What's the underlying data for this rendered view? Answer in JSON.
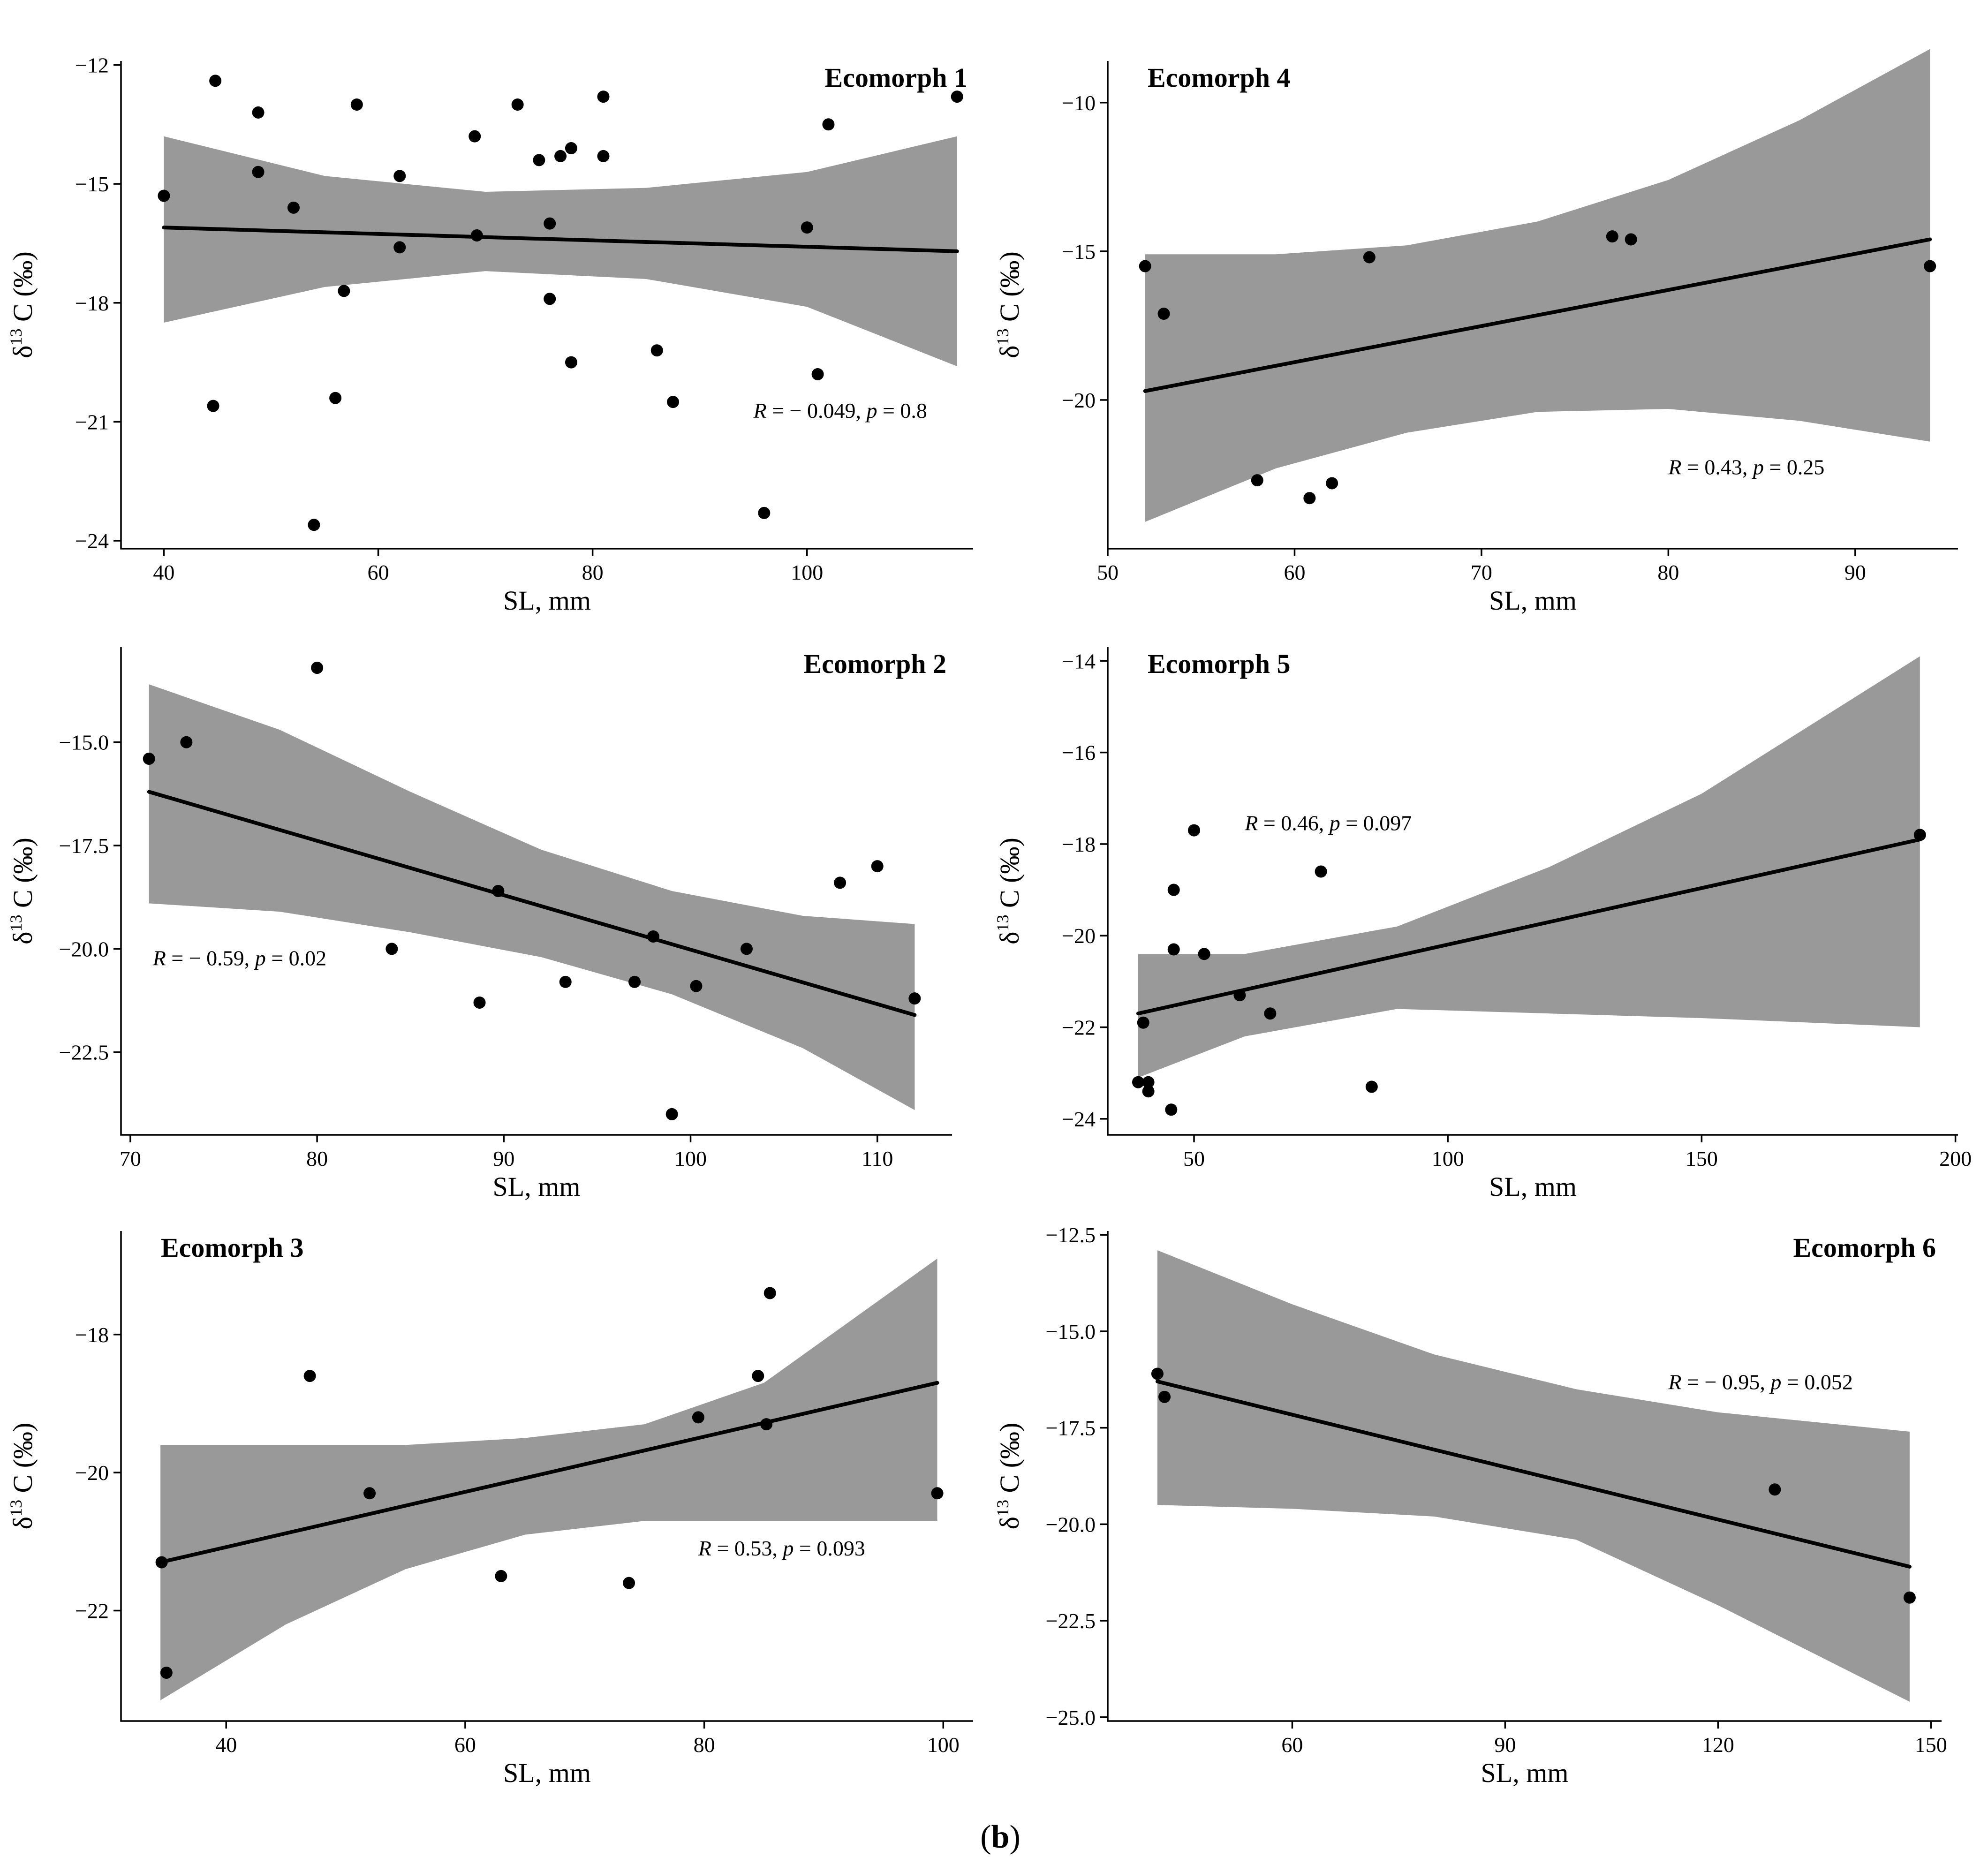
{
  "figure_caption": {
    "open": "(",
    "letter": "b",
    "close": ")"
  },
  "chart_data": [
    {
      "type": "scatter",
      "title": "Ecomorph 1",
      "xlabel": "SL, mm",
      "ylabel": {
        "delta": "δ",
        "sup": "13",
        "rest": " C (‰)"
      },
      "xlim": [
        36,
        115.5
      ],
      "ylim": [
        -24.2,
        -11.9
      ],
      "xticks": [
        40,
        60,
        80,
        100
      ],
      "yticks": [
        -12,
        -15,
        -18,
        -21,
        -24
      ],
      "ytick_labels": [
        "−12",
        "−15",
        "−18",
        "−21",
        "−24"
      ],
      "annotation": {
        "r_text": "R = − 0.049, ",
        "p_text": "p = 0.8",
        "x": 95,
        "y": -20.9
      },
      "title_align": "right",
      "fit": {
        "x": [
          40,
          114
        ],
        "y": [
          -16.1,
          -16.7
        ]
      },
      "band": {
        "x": [
          40,
          55,
          70,
          85,
          100,
          114
        ],
        "upper": [
          -13.8,
          -14.8,
          -15.2,
          -15.1,
          -14.7,
          -13.8
        ],
        "lower": [
          -18.5,
          -17.6,
          -17.2,
          -17.4,
          -18.1,
          -19.6
        ]
      },
      "points": [
        [
          40,
          -15.3
        ],
        [
          44.8,
          -12.4
        ],
        [
          44.6,
          -20.6
        ],
        [
          48.8,
          -13.2
        ],
        [
          48.8,
          -14.7
        ],
        [
          52.1,
          -15.6
        ],
        [
          54,
          -23.6
        ],
        [
          56,
          -20.4
        ],
        [
          56.8,
          -17.7
        ],
        [
          58,
          -13
        ],
        [
          62,
          -14.8
        ],
        [
          62,
          -16.6
        ],
        [
          69,
          -13.8
        ],
        [
          69.2,
          -16.3
        ],
        [
          73,
          -13
        ],
        [
          75,
          -14.4
        ],
        [
          76,
          -16
        ],
        [
          76,
          -17.9
        ],
        [
          77,
          -14.3
        ],
        [
          78,
          -14.1
        ],
        [
          78,
          -19.5
        ],
        [
          81,
          -12.8
        ],
        [
          81,
          -14.3
        ],
        [
          86,
          -19.2
        ],
        [
          87.5,
          -20.5
        ],
        [
          96,
          -23.3
        ],
        [
          100,
          -16.1
        ],
        [
          101,
          -19.8
        ],
        [
          102,
          -13.5
        ],
        [
          114,
          -12.8
        ]
      ]
    },
    {
      "type": "scatter",
      "title": "Ecomorph 2",
      "xlabel": "SL, mm",
      "ylabel": {
        "delta": "δ",
        "sup": "13",
        "rest": " C (‰)"
      },
      "xlim": [
        69.5,
        114
      ],
      "ylim": [
        -24.5,
        -12.7
      ],
      "xticks": [
        70,
        80,
        90,
        100,
        110
      ],
      "yticks": [
        -15,
        -17.5,
        -20,
        -22.5
      ],
      "ytick_labels": [
        "−15.0",
        "−17.5",
        "−20.0",
        "−22.5"
      ],
      "annotation": {
        "r_text": "R = − 0.59, ",
        "p_text": "p = 0.02",
        "x": 71.2,
        "y": -20.4
      },
      "title_align": "right",
      "fit": {
        "x": [
          71,
          112
        ],
        "y": [
          -16.2,
          -21.6
        ]
      },
      "band": {
        "x": [
          71,
          78,
          85,
          92,
          99,
          106,
          112
        ],
        "upper": [
          -13.6,
          -14.7,
          -16.2,
          -17.6,
          -18.6,
          -19.2,
          -19.4
        ],
        "lower": [
          -18.9,
          -19.1,
          -19.6,
          -20.2,
          -21.1,
          -22.4,
          -23.9
        ]
      },
      "points": [
        [
          71,
          -15.4
        ],
        [
          73,
          -15
        ],
        [
          80,
          -13.2
        ],
        [
          84,
          -20
        ],
        [
          88.7,
          -21.3
        ],
        [
          89.7,
          -18.6
        ],
        [
          93.3,
          -20.8
        ],
        [
          97,
          -20.8
        ],
        [
          98,
          -19.7
        ],
        [
          99,
          -24
        ],
        [
          100.3,
          -20.9
        ],
        [
          103,
          -20
        ],
        [
          108,
          -18.4
        ],
        [
          110,
          -18
        ],
        [
          112,
          -21.2
        ]
      ]
    },
    {
      "type": "scatter",
      "title": "Ecomorph 3",
      "xlabel": "SL, mm",
      "ylabel": {
        "delta": "δ",
        "sup": "13",
        "rest": " C (‰)"
      },
      "xlim": [
        31.2,
        102.5
      ],
      "ylim": [
        -23.6,
        -16.5
      ],
      "xticks": [
        40,
        60,
        80,
        100
      ],
      "yticks": [
        -18,
        -20,
        -22
      ],
      "ytick_labels": [
        "−18",
        "−20",
        "−22"
      ],
      "annotation": {
        "r_text": "R = 0.53, ",
        "p_text": "p = 0.093",
        "x": 79.5,
        "y": -21.2
      },
      "title_align": "left",
      "fit": {
        "x": [
          34.5,
          99.5
        ],
        "y": [
          -21.3,
          -18.7
        ]
      },
      "band": {
        "x": [
          34.5,
          45,
          55,
          65,
          75,
          85,
          99.5
        ],
        "upper": [
          -19.6,
          -19.6,
          -19.6,
          -19.5,
          -19.3,
          -18.7,
          -16.9
        ],
        "lower": [
          -23.3,
          -22.2,
          -21.4,
          -20.9,
          -20.7,
          -20.7,
          -20.7
        ]
      },
      "points": [
        [
          34.6,
          -21.3
        ],
        [
          35,
          -22.9
        ],
        [
          47,
          -18.6
        ],
        [
          52,
          -20.3
        ],
        [
          63,
          -21.5
        ],
        [
          73.7,
          -21.6
        ],
        [
          79.5,
          -19.2
        ],
        [
          84.5,
          -18.6
        ],
        [
          85.2,
          -19.3
        ],
        [
          85.5,
          -17.4
        ],
        [
          99.5,
          -20.3
        ]
      ]
    },
    {
      "type": "scatter",
      "title": "Ecomorph 4",
      "xlabel": "SL, mm",
      "ylabel": {
        "delta": "δ",
        "sup": "13",
        "rest": " C (‰)"
      },
      "xlim": [
        50,
        95.5
      ],
      "ylim": [
        -25,
        -8.6
      ],
      "xticks": [
        50,
        60,
        70,
        80,
        90
      ],
      "yticks": [
        -10,
        -15,
        -20
      ],
      "ytick_labels": [
        "−10",
        "−15",
        "−20"
      ],
      "annotation": {
        "r_text": "R = 0.43, ",
        "p_text": "p = 0.25",
        "x": 80,
        "y": -22.5
      },
      "title_align": "left",
      "fit": {
        "x": [
          52,
          94
        ],
        "y": [
          -19.7,
          -14.6
        ]
      },
      "band": {
        "x": [
          52,
          59,
          66,
          73,
          80,
          87,
          94
        ],
        "upper": [
          -15.1,
          -15.1,
          -14.8,
          -14.0,
          -12.6,
          -10.6,
          -8.2
        ],
        "lower": [
          -24.1,
          -22.3,
          -21.1,
          -20.4,
          -20.3,
          -20.7,
          -21.4
        ]
      },
      "points": [
        [
          52,
          -15.5
        ],
        [
          53,
          -17.1
        ],
        [
          58,
          -22.7
        ],
        [
          60.8,
          -23.3
        ],
        [
          62,
          -22.8
        ],
        [
          64,
          -15.2
        ],
        [
          77,
          -14.5
        ],
        [
          78,
          -14.6
        ],
        [
          94,
          -15.5
        ]
      ]
    },
    {
      "type": "scatter",
      "title": "Ecomorph 5",
      "xlabel": "SL, mm",
      "ylabel": {
        "delta": "δ",
        "sup": "13",
        "rest": " C (‰)"
      },
      "xlim": [
        33,
        200.5
      ],
      "ylim": [
        -24.35,
        -13.7
      ],
      "xticks": [
        50,
        100,
        150,
        200
      ],
      "yticks": [
        -14,
        -16,
        -18,
        -20,
        -22,
        -24
      ],
      "ytick_labels": [
        "−14",
        "−16",
        "−18",
        "−20",
        "−22",
        "−24"
      ],
      "annotation": {
        "r_text": "R = 0.46, ",
        "p_text": "p = 0.097",
        "x": 60,
        "y": -17.7
      },
      "title_align": "left",
      "fit": {
        "x": [
          39,
          193
        ],
        "y": [
          -21.7,
          -17.9
        ]
      },
      "band": {
        "x": [
          39,
          60,
          90,
          120,
          150,
          193
        ],
        "upper": [
          -20.4,
          -20.4,
          -19.8,
          -18.5,
          -16.9,
          -13.9
        ],
        "lower": [
          -23.1,
          -22.2,
          -21.6,
          -21.7,
          -21.8,
          -22.0
        ]
      },
      "points": [
        [
          39,
          -23.2
        ],
        [
          40,
          -21.9
        ],
        [
          41,
          -23.2
        ],
        [
          41,
          -23.4
        ],
        [
          45.5,
          -23.8
        ],
        [
          46,
          -19
        ],
        [
          46,
          -20.3
        ],
        [
          50,
          -17.7
        ],
        [
          52,
          -20.4
        ],
        [
          59,
          -21.3
        ],
        [
          65,
          -21.7
        ],
        [
          75,
          -18.6
        ],
        [
          85,
          -23.3
        ],
        [
          193,
          -17.8
        ]
      ]
    },
    {
      "type": "scatter",
      "title": "Ecomorph 6",
      "xlabel": "SL, mm",
      "ylabel": {
        "delta": "δ",
        "sup": "13",
        "rest": " C (‰)"
      },
      "xlim": [
        34,
        151.5
      ],
      "ylim": [
        -25.1,
        -12.4
      ],
      "xticks": [
        60,
        90,
        120,
        150
      ],
      "yticks": [
        -12.5,
        -15,
        -17.5,
        -20,
        -22.5,
        -25
      ],
      "ytick_labels": [
        "−12.5",
        "−15.0",
        "−17.5",
        "−20.0",
        "−22.5",
        "−25.0"
      ],
      "annotation": {
        "r_text": "R = − 0.95, ",
        "p_text": "p = 0.052",
        "x": 113,
        "y": -16.5
      },
      "title_align": "right",
      "fit": {
        "x": [
          41,
          147
        ],
        "y": [
          -16.3,
          -21.1
        ]
      },
      "band": {
        "x": [
          41,
          60,
          80,
          100,
          120,
          147
        ],
        "upper": [
          -12.9,
          -14.3,
          -15.6,
          -16.5,
          -17.1,
          -17.6
        ],
        "lower": [
          -19.5,
          -19.6,
          -19.8,
          -20.4,
          -22.1,
          -24.6
        ]
      },
      "points": [
        [
          41,
          -16.1
        ],
        [
          42,
          -16.7
        ],
        [
          128,
          -19.1
        ],
        [
          147,
          -21.9
        ]
      ]
    }
  ]
}
